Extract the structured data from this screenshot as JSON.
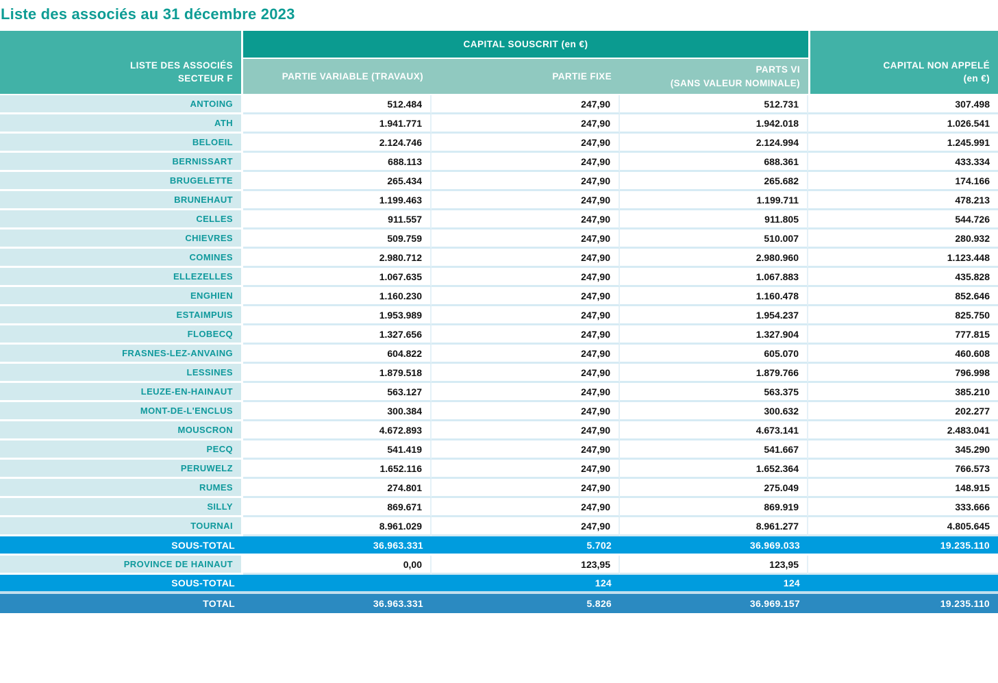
{
  "title": "Liste des associés au 31 décembre 2023",
  "colors": {
    "title_teal": "#0d9c94",
    "header_dark_teal": "#0b9b90",
    "header_medium_teal": "#41b2a7",
    "header_light_teal": "#90c9c0",
    "label_cell_bg": "#d2eaee",
    "label_text_teal": "#0f999c",
    "subtotal_blue": "#009cde",
    "total_blue": "#2b8ac1"
  },
  "table": {
    "header": {
      "corner": "LISTE DES ASSOCIÉS\nSECTEUR F",
      "group": "CAPITAL SOUSCRIT (en €)",
      "sub": [
        "PARTIE VARIABLE (TRAVAUX)",
        "PARTIE FIXE",
        "PARTS VI\n(SANS VALEUR NOMINALE)"
      ],
      "capital_non_appele": "CAPITAL NON APPELÉ\n(en €)"
    },
    "rows": [
      {
        "label": "ANTOING",
        "values": [
          "512.484",
          "247,90",
          "512.731",
          "307.498"
        ]
      },
      {
        "label": "ATH",
        "values": [
          "1.941.771",
          "247,90",
          "1.942.018",
          "1.026.541"
        ]
      },
      {
        "label": "BELOEIL",
        "values": [
          "2.124.746",
          "247,90",
          "2.124.994",
          "1.245.991"
        ]
      },
      {
        "label": "BERNISSART",
        "values": [
          "688.113",
          "247,90",
          "688.361",
          "433.334"
        ]
      },
      {
        "label": "BRUGELETTE",
        "values": [
          "265.434",
          "247,90",
          "265.682",
          "174.166"
        ]
      },
      {
        "label": "BRUNEHAUT",
        "values": [
          "1.199.463",
          "247,90",
          "1.199.711",
          "478.213"
        ]
      },
      {
        "label": "CELLES",
        "values": [
          "911.557",
          "247,90",
          "911.805",
          "544.726"
        ]
      },
      {
        "label": "CHIEVRES",
        "values": [
          "509.759",
          "247,90",
          "510.007",
          "280.932"
        ]
      },
      {
        "label": "COMINES",
        "values": [
          "2.980.712",
          "247,90",
          "2.980.960",
          "1.123.448"
        ]
      },
      {
        "label": "ELLEZELLES",
        "values": [
          "1.067.635",
          "247,90",
          "1.067.883",
          "435.828"
        ]
      },
      {
        "label": "ENGHIEN",
        "values": [
          "1.160.230",
          "247,90",
          "1.160.478",
          "852.646"
        ]
      },
      {
        "label": "ESTAIMPUIS",
        "values": [
          "1.953.989",
          "247,90",
          "1.954.237",
          "825.750"
        ]
      },
      {
        "label": "FLOBECQ",
        "values": [
          "1.327.656",
          "247,90",
          "1.327.904",
          "777.815"
        ]
      },
      {
        "label": "FRASNES-LEZ-ANVAING",
        "values": [
          "604.822",
          "247,90",
          "605.070",
          "460.608"
        ]
      },
      {
        "label": "LESSINES",
        "values": [
          "1.879.518",
          "247,90",
          "1.879.766",
          "796.998"
        ]
      },
      {
        "label": "LEUZE-EN-HAINAUT",
        "values": [
          "563.127",
          "247,90",
          "563.375",
          "385.210"
        ]
      },
      {
        "label": "MONT-DE-L'ENCLUS",
        "values": [
          "300.384",
          "247,90",
          "300.632",
          "202.277"
        ]
      },
      {
        "label": "MOUSCRON",
        "values": [
          "4.672.893",
          "247,90",
          "4.673.141",
          "2.483.041"
        ]
      },
      {
        "label": "PECQ",
        "values": [
          "541.419",
          "247,90",
          "541.667",
          "345.290"
        ]
      },
      {
        "label": "PERUWELZ",
        "values": [
          "1.652.116",
          "247,90",
          "1.652.364",
          "766.573"
        ]
      },
      {
        "label": "RUMES",
        "values": [
          "274.801",
          "247,90",
          "275.049",
          "148.915"
        ]
      },
      {
        "label": "SILLY",
        "values": [
          "869.671",
          "247,90",
          "869.919",
          "333.666"
        ]
      },
      {
        "label": "TOURNAI",
        "values": [
          "8.961.029",
          "247,90",
          "8.961.277",
          "4.805.645"
        ]
      }
    ],
    "totals": {
      "subtotal1": {
        "label": "SOUS-TOTAL",
        "values": [
          "36.963.331",
          "5.702",
          "36.969.033",
          "19.235.110"
        ]
      },
      "province": {
        "label": "PROVINCE DE HAINAUT",
        "values": [
          "0,00",
          "123,95",
          "123,95",
          ""
        ]
      },
      "subtotal2": {
        "label": "SOUS-TOTAL",
        "values": [
          "",
          "124",
          "124",
          ""
        ]
      },
      "total": {
        "label": "TOTAL",
        "values": [
          "36.963.331",
          "5.826",
          "36.969.157",
          "19.235.110"
        ]
      }
    }
  }
}
